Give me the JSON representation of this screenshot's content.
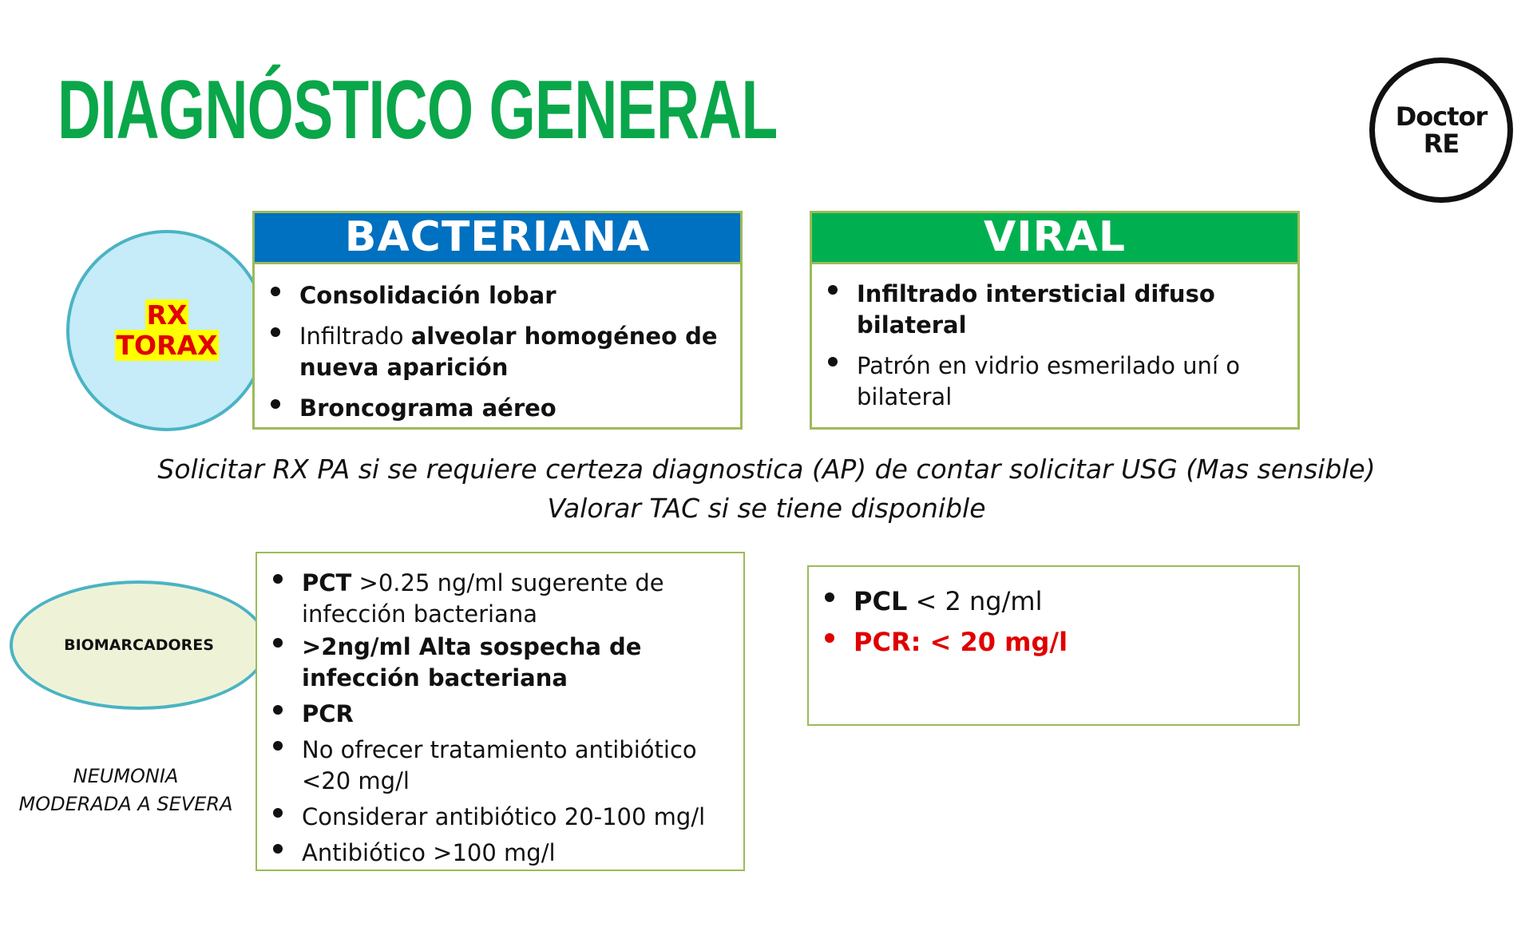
{
  "title": "DIAGNÓSTICO GENERAL",
  "logo": {
    "line1": "Doctor",
    "line2": "RE"
  },
  "rx_circle": {
    "line1": "RX",
    "line2": "TORAX"
  },
  "bacteriana": {
    "header": "BACTERIANA",
    "items": [
      {
        "normal": "",
        "bold": "Consolidación lobar"
      },
      {
        "normal": "Infiltrado ",
        "bold": "alveolar homogéneo  de nueva aparición"
      },
      {
        "normal": "",
        "bold": "Broncograma aéreo"
      }
    ]
  },
  "viral": {
    "header": "VIRAL",
    "items": [
      {
        "bold": "Infiltrado intersticial difuso bilateral",
        "normal": ""
      },
      {
        "bold": "",
        "normal": "Patrón en vidrio esmerilado uní o bilateral"
      }
    ]
  },
  "notes": {
    "line1": "Solicitar RX PA si se requiere certeza diagnostica (AP) de contar solicitar USG (Mas sensible)",
    "line2": "Valorar TAC si se tiene disponible"
  },
  "biomarcadores_label": "BIOMARCADORES",
  "neumonia_label": {
    "line1": "NEUMONIA",
    "line2": "MODERADA A SEVERA"
  },
  "bact_biomarkers": [
    {
      "bold": "PCT",
      "normal": " >0.25 ng/ml sugerente de infección bacteriana"
    },
    {
      "bold": ">2ng/ml Alta sospecha de infección bacteriana",
      "normal": ""
    },
    {
      "bold": "PCR",
      "normal": ""
    },
    {
      "bold": "",
      "normal": "No ofrecer tratamiento antibiótico <20 mg/l"
    },
    {
      "bold": "",
      "normal": "Considerar antibiótico 20-100 mg/l"
    },
    {
      "bold": "",
      "normal": "Antibiótico >100 mg/l"
    }
  ],
  "viral_biomarkers": [
    {
      "bold": "PCL",
      "normal": " < 2 ng/ml"
    },
    {
      "bold": "PCR: < 20 mg/l",
      "normal": ""
    }
  ],
  "colors": {
    "title": "#0aa64a",
    "bacteriana_header": "#0070c0",
    "viral_header": "#00b050",
    "box_border": "#9bbb59",
    "alert": "#e00000"
  }
}
